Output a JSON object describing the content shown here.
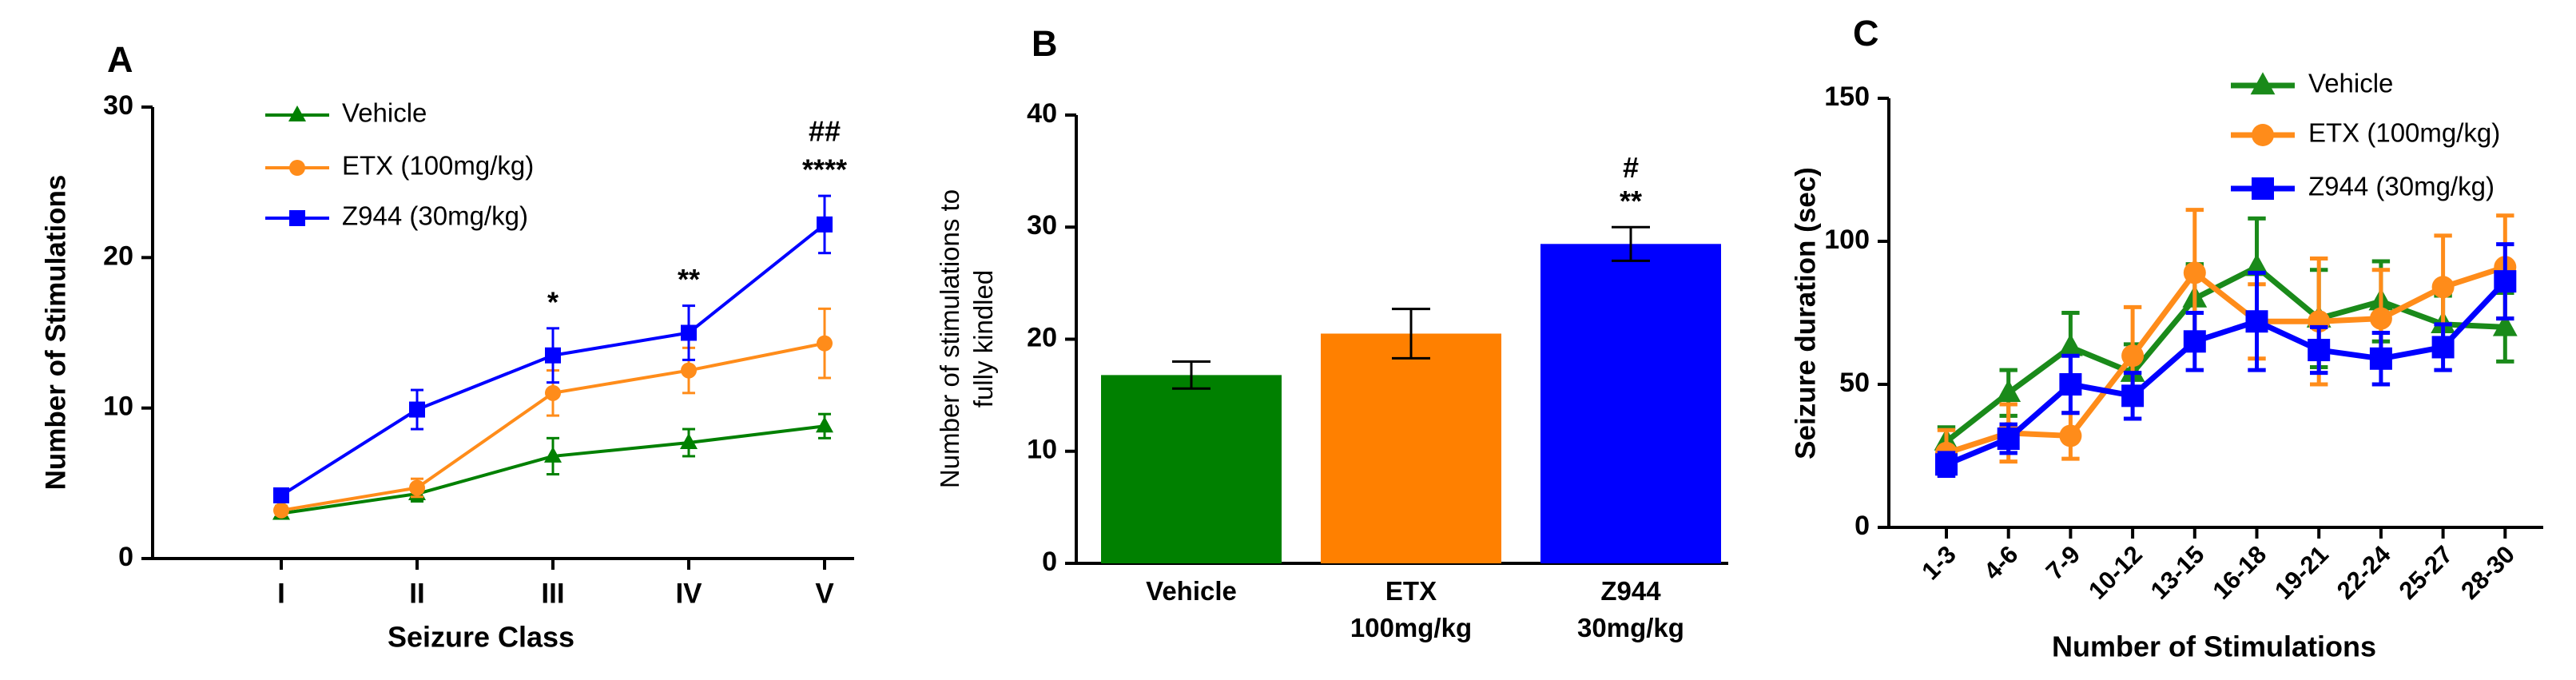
{
  "chart_data": [
    {
      "type": "line",
      "panel_label": "A",
      "x_label": "Seizure Class",
      "y_label": "Number of Stimulations",
      "categories": [
        "I",
        "II",
        "III",
        "IV",
        "V"
      ],
      "ylim": [
        0,
        30
      ],
      "yticks": [
        0,
        10,
        20,
        30
      ],
      "series": [
        {
          "name": "Vehicle",
          "color": "#008000",
          "marker": "triangle",
          "values": [
            3,
            4.3,
            6.8,
            7.7,
            8.8
          ],
          "errors": [
            0.3,
            0.5,
            1.2,
            0.9,
            0.8
          ]
        },
        {
          "name": "ETX (100mg/kg)",
          "color": "#ff8c1a",
          "marker": "circle",
          "values": [
            3.2,
            4.7,
            11,
            12.5,
            14.3
          ],
          "errors": [
            0.3,
            0.6,
            1.5,
            1.5,
            2.3
          ]
        },
        {
          "name": "Z944 (30mg/kg)",
          "color": "#0000ff",
          "marker": "square",
          "values": [
            4.2,
            9.9,
            13.5,
            15,
            22.2
          ],
          "errors": [
            0.4,
            1.3,
            1.8,
            1.8,
            1.9
          ]
        }
      ],
      "annotations": [
        {
          "category": "III",
          "lines": [
            "*"
          ]
        },
        {
          "category": "IV",
          "lines": [
            "**"
          ]
        },
        {
          "category": "V",
          "lines": [
            "##",
            "****"
          ]
        }
      ]
    },
    {
      "type": "bar",
      "panel_label": "B",
      "y_label": "Number of stimulations to fully kindled",
      "categories": [
        "Vehicle",
        "ETX 100mg/kg",
        "Z944 30mg/kg"
      ],
      "values": [
        16.8,
        20.5,
        28.5
      ],
      "errors": [
        1.2,
        2.2,
        1.5
      ],
      "colors": [
        "#008000",
        "#ff8000",
        "#0000ff"
      ],
      "ylim": [
        0,
        40
      ],
      "yticks": [
        0,
        10,
        20,
        30,
        40
      ],
      "annotations": [
        {
          "category": "Z944 30mg/kg",
          "lines": [
            "#",
            "**"
          ]
        }
      ]
    },
    {
      "type": "line",
      "panel_label": "C",
      "x_label": "Number of Stimulations",
      "y_label": "Seizure duration (sec)",
      "categories": [
        "1-3",
        "4-6",
        "7-9",
        "10-12",
        "13-15",
        "16-18",
        "19-21",
        "22-24",
        "25-27",
        "28-30"
      ],
      "ylim": [
        0,
        150
      ],
      "yticks": [
        0,
        50,
        100,
        150
      ],
      "series": [
        {
          "name": "Vehicle",
          "color": "#1a8a1a",
          "marker": "triangle",
          "values": [
            30,
            47,
            63,
            54,
            80,
            91,
            73,
            79,
            71,
            70
          ],
          "errors": [
            5,
            8,
            12,
            10,
            12,
            17,
            17,
            14,
            10,
            12
          ]
        },
        {
          "name": "ETX (100mg/kg)",
          "color": "#ff8c1a",
          "marker": "circle",
          "values": [
            26,
            33,
            32,
            60,
            89,
            72,
            72,
            73,
            84,
            91
          ],
          "errors": [
            8,
            10,
            8,
            17,
            22,
            13,
            22,
            17,
            18,
            18
          ]
        },
        {
          "name": "Z944 (30mg/kg)",
          "color": "#0000ff",
          "marker": "square",
          "values": [
            22,
            31,
            50,
            46,
            65,
            72,
            62,
            59,
            63,
            86
          ],
          "errors": [
            4,
            5,
            10,
            8,
            10,
            17,
            8,
            9,
            8,
            13
          ]
        }
      ]
    }
  ]
}
